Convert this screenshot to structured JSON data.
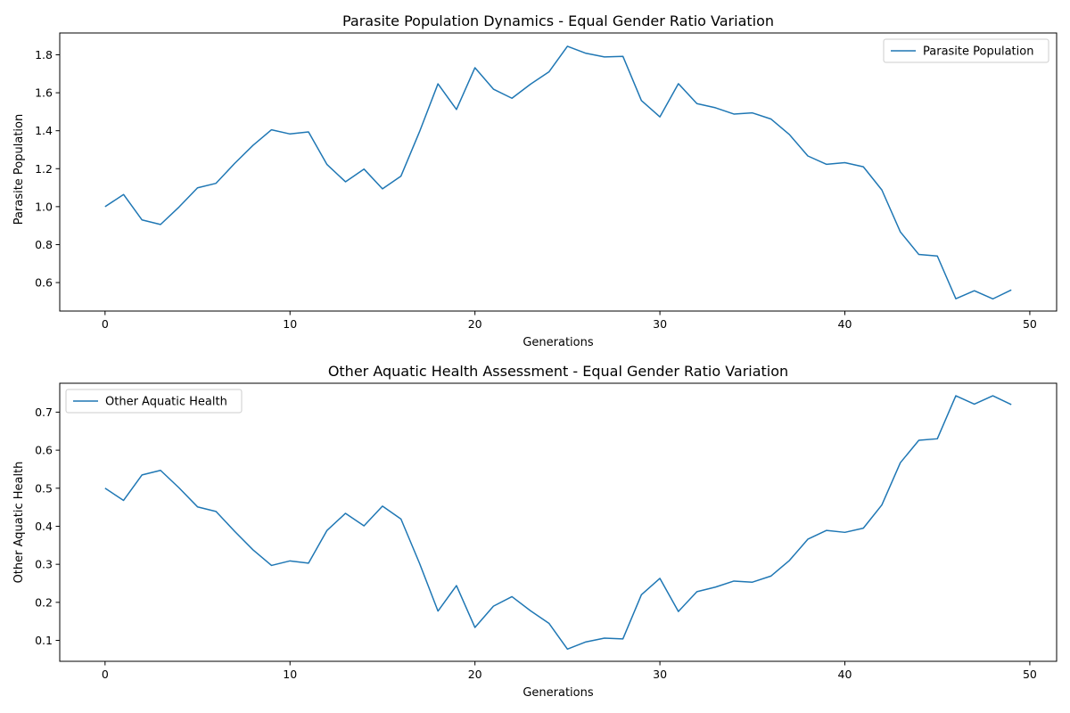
{
  "chart_data": [
    {
      "type": "line",
      "title": "Parasite Population Dynamics - Equal Gender Ratio Variation",
      "xlabel": "Generations",
      "ylabel": "Parasite Population",
      "xlim": [
        -2.45,
        51.45
      ],
      "ylim": [
        0.45,
        1.915
      ],
      "xticks": [
        0,
        10,
        20,
        30,
        40,
        50
      ],
      "yticks": [
        0.6,
        0.8,
        1.0,
        1.2,
        1.4,
        1.6,
        1.8
      ],
      "ytick_labels": [
        "0.6",
        "0.8",
        "1.0",
        "1.2",
        "1.4",
        "1.6",
        "1.8"
      ],
      "grid": false,
      "legend": "top-right",
      "series": [
        {
          "name": "Parasite Population",
          "color": "#1f77b4",
          "x": [
            0,
            1,
            2,
            3,
            4,
            5,
            6,
            7,
            8,
            9,
            10,
            11,
            12,
            13,
            14,
            15,
            16,
            17,
            18,
            19,
            20,
            21,
            22,
            23,
            24,
            25,
            26,
            27,
            28,
            29,
            30,
            31,
            32,
            33,
            34,
            35,
            36,
            37,
            38,
            39,
            40,
            41,
            42,
            43,
            44,
            45,
            46,
            47,
            48,
            49
          ],
          "values": [
            1.0,
            1.064,
            0.93,
            0.906,
            0.998,
            1.099,
            1.123,
            1.227,
            1.323,
            1.405,
            1.383,
            1.394,
            1.222,
            1.131,
            1.198,
            1.094,
            1.161,
            1.394,
            1.647,
            1.512,
            1.732,
            1.619,
            1.571,
            1.645,
            1.71,
            1.845,
            1.808,
            1.789,
            1.792,
            1.559,
            1.473,
            1.648,
            1.543,
            1.521,
            1.488,
            1.494,
            1.462,
            1.38,
            1.267,
            1.223,
            1.232,
            1.21,
            1.088,
            0.867,
            0.748,
            0.74,
            0.515,
            0.557,
            0.514,
            0.561
          ]
        }
      ]
    },
    {
      "type": "line",
      "title": "Other Aquatic Health Assessment - Equal Gender Ratio Variation",
      "xlabel": "Generations",
      "ylabel": "Other Aquatic Health",
      "xlim": [
        -2.45,
        51.45
      ],
      "ylim": [
        0.045,
        0.776
      ],
      "xticks": [
        0,
        10,
        20,
        30,
        40,
        50
      ],
      "yticks": [
        0.1,
        0.2,
        0.3,
        0.4,
        0.5,
        0.6,
        0.7
      ],
      "ytick_labels": [
        "0.1",
        "0.2",
        "0.3",
        "0.4",
        "0.5",
        "0.6",
        "0.7"
      ],
      "grid": false,
      "legend": "top-left",
      "series": [
        {
          "name": "Other Aquatic Health",
          "color": "#1f77b4",
          "x": [
            0,
            1,
            2,
            3,
            4,
            5,
            6,
            7,
            8,
            9,
            10,
            11,
            12,
            13,
            14,
            15,
            16,
            17,
            18,
            19,
            20,
            21,
            22,
            23,
            24,
            25,
            26,
            27,
            28,
            29,
            30,
            31,
            32,
            33,
            34,
            35,
            36,
            37,
            38,
            39,
            40,
            41,
            42,
            43,
            44,
            45,
            46,
            47,
            48,
            49
          ],
          "values": [
            0.5,
            0.468,
            0.535,
            0.547,
            0.501,
            0.451,
            0.439,
            0.387,
            0.338,
            0.297,
            0.309,
            0.303,
            0.389,
            0.434,
            0.401,
            0.453,
            0.419,
            0.303,
            0.177,
            0.244,
            0.134,
            0.19,
            0.215,
            0.178,
            0.145,
            0.077,
            0.096,
            0.106,
            0.104,
            0.22,
            0.263,
            0.176,
            0.228,
            0.24,
            0.256,
            0.253,
            0.269,
            0.31,
            0.366,
            0.389,
            0.384,
            0.395,
            0.456,
            0.567,
            0.626,
            0.63,
            0.743,
            0.721,
            0.743,
            0.72
          ]
        }
      ]
    }
  ]
}
